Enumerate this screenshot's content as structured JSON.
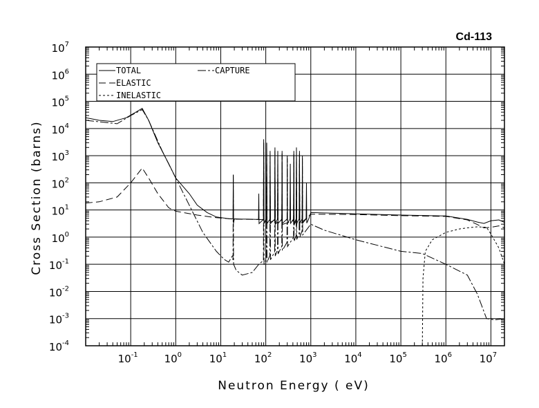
{
  "chart_data": {
    "type": "line",
    "title": "Cd-113",
    "xlabel": "Neutron Energy ( eV)",
    "ylabel": "Cross Section (barns)",
    "xscale": "log",
    "yscale": "log",
    "xlim": [
      0.01,
      20000000
    ],
    "ylim": [
      0.0001,
      10000000
    ],
    "grid": true,
    "legend_position": "top-left",
    "x_tick_exponents": [
      -1,
      0,
      1,
      2,
      3,
      4,
      5,
      6,
      7
    ],
    "y_tick_exponents": [
      -4,
      -3,
      -2,
      -1,
      0,
      1,
      2,
      3,
      4,
      5,
      6,
      7
    ],
    "tick_base": "10",
    "series": [
      {
        "name": "TOTAL",
        "dash": "",
        "points": [
          [
            0.01,
            25000
          ],
          [
            0.02,
            20000
          ],
          [
            0.04,
            18000
          ],
          [
            0.08,
            25000
          ],
          [
            0.13,
            40000
          ],
          [
            0.18,
            55000
          ],
          [
            0.25,
            20000
          ],
          [
            0.4,
            3000
          ],
          [
            0.7,
            500
          ],
          [
            1,
            150
          ],
          [
            2,
            40
          ],
          [
            3,
            15
          ],
          [
            5,
            8
          ],
          [
            8,
            5.5
          ],
          [
            15,
            4.8
          ],
          [
            20,
            4.7
          ],
          [
            30,
            4.6
          ],
          [
            40,
            4.6
          ],
          [
            60,
            4.5
          ],
          [
            100,
            4.5
          ],
          [
            300,
            4.6
          ],
          [
            900,
            4.7
          ],
          [
            1000,
            8
          ],
          [
            10000,
            7.2
          ],
          [
            100000,
            6.5
          ],
          [
            1000000,
            6
          ],
          [
            3000000,
            4.5
          ],
          [
            5000000,
            3.6
          ],
          [
            7000000,
            3.2
          ],
          [
            10000000,
            4
          ],
          [
            15000000,
            4.3
          ],
          [
            20000000,
            3.5
          ]
        ],
        "peaks": [
          [
            19,
            200
          ],
          [
            70,
            40
          ],
          [
            90,
            4000
          ],
          [
            105,
            3000
          ],
          [
            125,
            1500
          ],
          [
            160,
            2000
          ],
          [
            185,
            1500
          ],
          [
            230,
            1500
          ],
          [
            300,
            1000
          ],
          [
            350,
            500
          ],
          [
            420,
            1500
          ],
          [
            480,
            2000
          ],
          [
            560,
            1500
          ],
          [
            650,
            1000
          ],
          [
            800,
            100
          ]
        ]
      },
      {
        "name": "ELASTIC",
        "dash": "10,5",
        "points": [
          [
            0.01,
            18
          ],
          [
            0.02,
            20
          ],
          [
            0.05,
            30
          ],
          [
            0.1,
            100
          ],
          [
            0.18,
            350
          ],
          [
            0.25,
            150
          ],
          [
            0.4,
            40
          ],
          [
            0.7,
            12
          ],
          [
            1,
            9
          ],
          [
            3,
            6.5
          ],
          [
            8,
            5.2
          ],
          [
            15,
            4.8
          ],
          [
            20,
            4.6
          ],
          [
            50,
            4.5
          ],
          [
            100,
            4.4
          ],
          [
            200,
            4.2
          ],
          [
            500,
            4
          ],
          [
            800,
            5
          ],
          [
            1000,
            7
          ],
          [
            10000,
            6.8
          ],
          [
            100000,
            6.2
          ],
          [
            1000000,
            5.8
          ],
          [
            3000000,
            4.3
          ],
          [
            5000000,
            2.9
          ],
          [
            7000000,
            2.2
          ],
          [
            10000000,
            2.3
          ],
          [
            15000000,
            2.6
          ],
          [
            20000000,
            2.2
          ]
        ],
        "peaks": [
          [
            90,
            3000
          ],
          [
            105,
            2000
          ],
          [
            160,
            1500
          ],
          [
            230,
            1000
          ],
          [
            420,
            1000
          ],
          [
            480,
            1500
          ],
          [
            560,
            1000
          ]
        ]
      },
      {
        "name": "INELASTIC",
        "dash": "3,3",
        "points": [
          [
            300000,
            0.0001
          ],
          [
            310000,
            0.03
          ],
          [
            350000,
            0.3
          ],
          [
            500000,
            0.8
          ],
          [
            1000000,
            1.5
          ],
          [
            2000000,
            2
          ],
          [
            3000000,
            2.2
          ],
          [
            5000000,
            2.4
          ],
          [
            8000000,
            2.3
          ],
          [
            10000000,
            1.3
          ],
          [
            15000000,
            0.4
          ],
          [
            20000000,
            0.1
          ]
        ],
        "peaks": []
      },
      {
        "name": "CAPTURE",
        "dash": "12,3,3,3",
        "points": [
          [
            0.01,
            20000
          ],
          [
            0.05,
            15000
          ],
          [
            0.1,
            30000
          ],
          [
            0.18,
            50000
          ],
          [
            0.25,
            20000
          ],
          [
            0.5,
            1500
          ],
          [
            1,
            150
          ],
          [
            2,
            15
          ],
          [
            4,
            1.5
          ],
          [
            8,
            0.3
          ],
          [
            12,
            0.15
          ],
          [
            15,
            0.12
          ],
          [
            18,
            0.2
          ],
          [
            22,
            0.06
          ],
          [
            30,
            0.04
          ],
          [
            50,
            0.05
          ],
          [
            70,
            0.1
          ],
          [
            1000,
            3
          ],
          [
            2000,
            1.8
          ],
          [
            10000,
            0.8
          ],
          [
            30000,
            0.5
          ],
          [
            100000,
            0.3
          ],
          [
            300000,
            0.25
          ],
          [
            1000000,
            0.1
          ],
          [
            3000000,
            0.04
          ],
          [
            5000000,
            0.008
          ],
          [
            8000000,
            0.001
          ],
          [
            12000000,
            0.0009
          ],
          [
            20000000,
            0.001
          ]
        ],
        "peaks": [
          [
            19,
            200
          ],
          [
            90,
            3000
          ],
          [
            105,
            2500
          ],
          [
            125,
            1000
          ],
          [
            160,
            1500
          ],
          [
            185,
            1200
          ],
          [
            230,
            1200
          ],
          [
            300,
            800
          ],
          [
            420,
            1200
          ],
          [
            480,
            1500
          ],
          [
            560,
            1200
          ],
          [
            650,
            800
          ]
        ]
      }
    ]
  }
}
